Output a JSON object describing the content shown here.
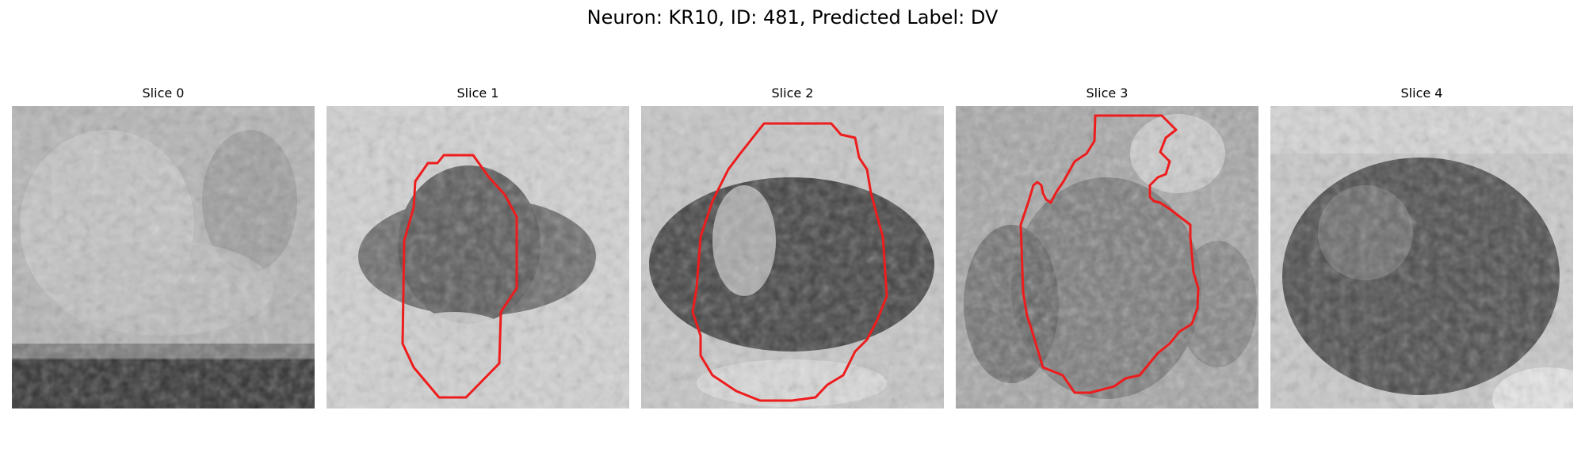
{
  "figure": {
    "title": "Neuron: KR10, ID: 481, Predicted Label: DV"
  },
  "panels": [
    {
      "label": "Slice 0"
    },
    {
      "label": "Slice 1"
    },
    {
      "label": "Slice 2"
    },
    {
      "label": "Slice 3"
    },
    {
      "label": "Slice 4"
    }
  ],
  "colors": {
    "contour": "#ee1c1c",
    "background": "#ffffff"
  }
}
